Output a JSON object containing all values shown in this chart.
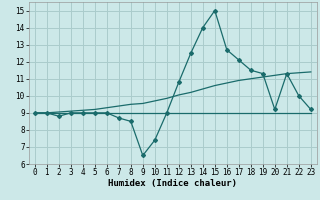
{
  "xlabel": "Humidex (Indice chaleur)",
  "background_color": "#cce8e8",
  "grid_color": "#aacccc",
  "line_color": "#1a6b6b",
  "x_data": [
    0,
    1,
    2,
    3,
    4,
    5,
    6,
    7,
    8,
    9,
    10,
    11,
    12,
    13,
    14,
    15,
    16,
    17,
    18,
    19,
    20,
    21,
    22,
    23
  ],
  "y_main": [
    9,
    9,
    8.8,
    9,
    9,
    9,
    9,
    8.7,
    8.5,
    6.5,
    7.4,
    9,
    10.8,
    12.5,
    14,
    15,
    12.7,
    12.1,
    11.5,
    11.3,
    9.2,
    11.3,
    10,
    9.2
  ],
  "y_line1": [
    9,
    9,
    9,
    9,
    9,
    9,
    9,
    9,
    9,
    9,
    9,
    9,
    9,
    9,
    9,
    9,
    9,
    9,
    9,
    9,
    9,
    9,
    9,
    9
  ],
  "y_line2": [
    9,
    9.0,
    9.05,
    9.1,
    9.15,
    9.2,
    9.3,
    9.4,
    9.5,
    9.55,
    9.7,
    9.85,
    10.05,
    10.2,
    10.4,
    10.6,
    10.75,
    10.9,
    11.0,
    11.1,
    11.2,
    11.3,
    11.35,
    11.4
  ],
  "xlim": [
    -0.5,
    23.5
  ],
  "ylim": [
    6,
    15.5
  ],
  "yticks": [
    6,
    7,
    8,
    9,
    10,
    11,
    12,
    13,
    14,
    15
  ],
  "xticks": [
    0,
    1,
    2,
    3,
    4,
    5,
    6,
    7,
    8,
    9,
    10,
    11,
    12,
    13,
    14,
    15,
    16,
    17,
    18,
    19,
    20,
    21,
    22,
    23
  ],
  "tick_fontsize": 5.5,
  "xlabel_fontsize": 6.5
}
